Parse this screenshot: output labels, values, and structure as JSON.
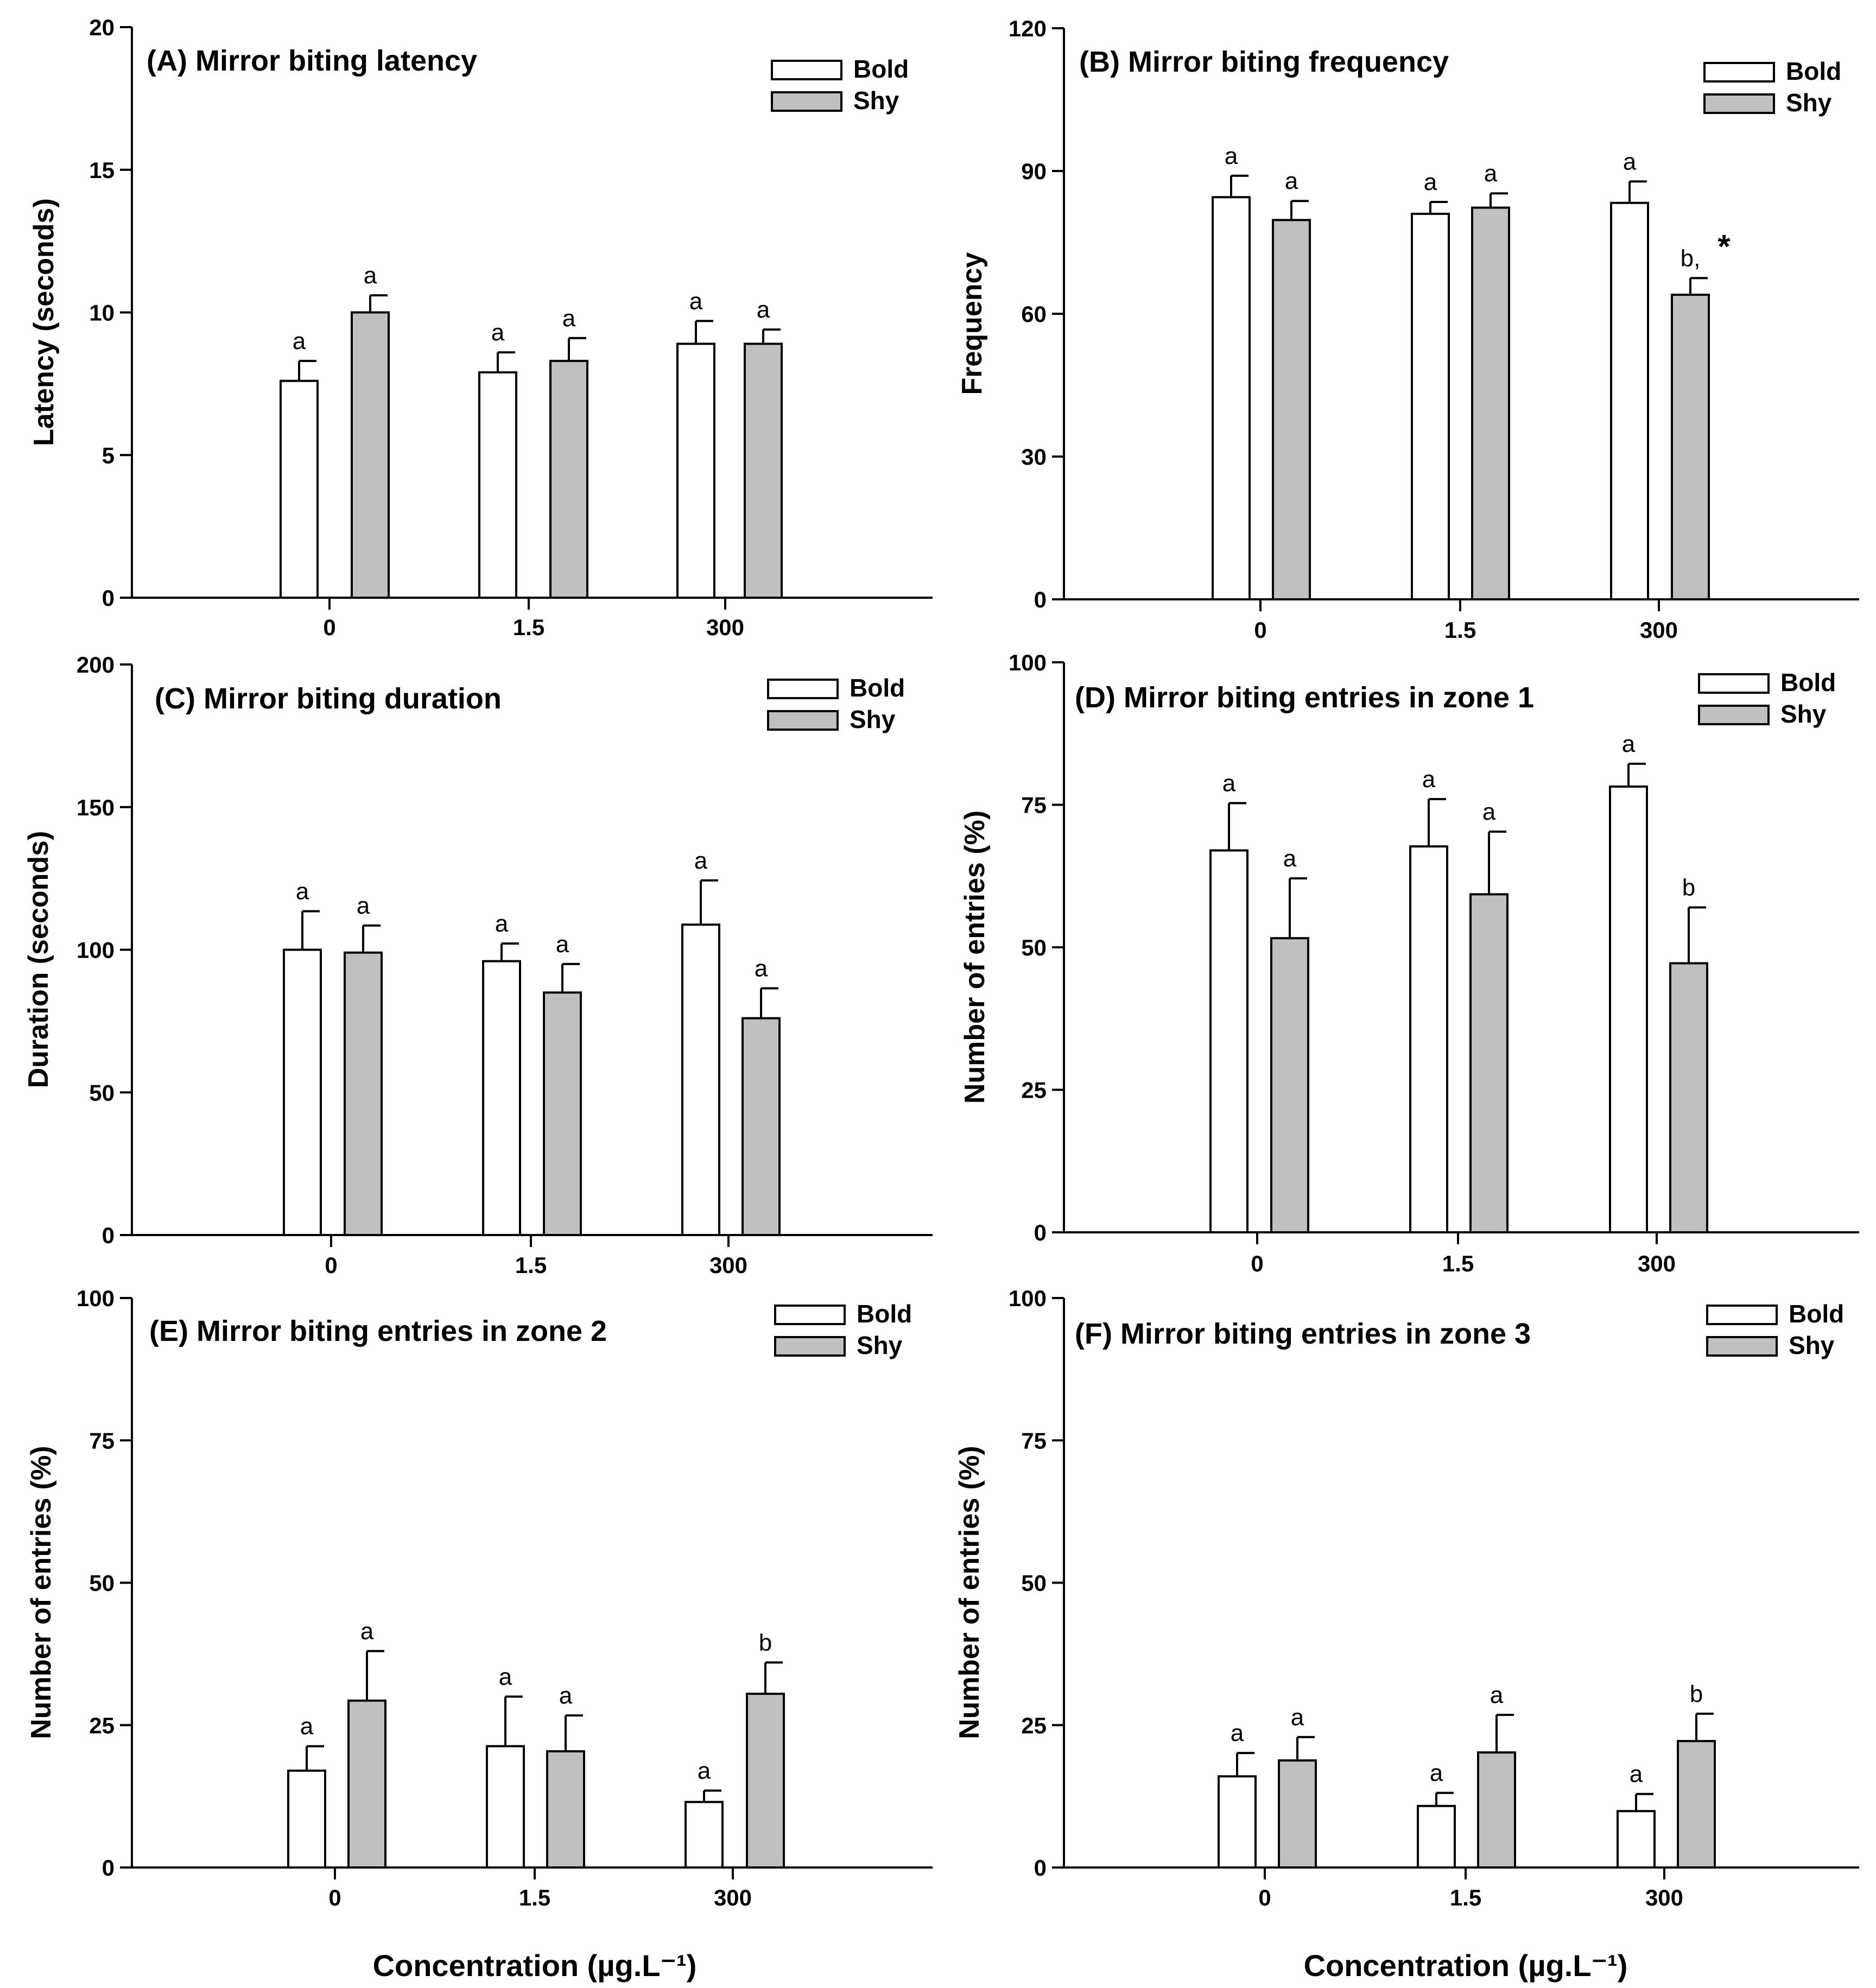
{
  "chart_data": [
    {
      "type": "bar",
      "title": "(A) Mirror biting latency",
      "xlabel": "",
      "ylabel": "Latency (seconds)",
      "categories": [
        "0",
        "1.5",
        "300"
      ],
      "ylim": [
        0,
        20
      ],
      "yticks": [
        "0",
        "5",
        "10",
        "15",
        "20"
      ],
      "series": [
        {
          "name": "Bold",
          "values": [
            7.6,
            7.9,
            8.9
          ],
          "errors": [
            0.7,
            0.7,
            0.8
          ],
          "letters": [
            "a",
            "a",
            "a"
          ]
        },
        {
          "name": "Shy",
          "values": [
            10.0,
            8.3,
            8.9
          ],
          "errors": [
            0.6,
            0.8,
            0.5
          ],
          "letters": [
            "a",
            "a",
            "a"
          ]
        }
      ]
    },
    {
      "type": "bar",
      "title": "(B) Mirror biting frequency",
      "xlabel": "",
      "ylabel": "Frequency",
      "categories": [
        "0",
        "1.5",
        "300"
      ],
      "ylim": [
        0,
        120
      ],
      "yticks": [
        "0",
        "30",
        "60",
        "90",
        "120"
      ],
      "series": [
        {
          "name": "Bold",
          "values": [
            84.5,
            81.0,
            83.3
          ],
          "errors": [
            4.5,
            2.5,
            4.5
          ],
          "letters": [
            "a",
            "a",
            "a"
          ]
        },
        {
          "name": "Shy",
          "values": [
            79.7,
            82.3,
            64.0
          ],
          "errors": [
            4.0,
            3.0,
            3.5
          ],
          "letters": [
            "a",
            "a",
            "b,"
          ]
        }
      ],
      "annotations": [
        "*"
      ]
    },
    {
      "type": "bar",
      "title": "(C) Mirror biting duration",
      "xlabel": "",
      "ylabel": "Duration (seconds)",
      "categories": [
        "0",
        "1.5",
        "300"
      ],
      "ylim": [
        0,
        200
      ],
      "yticks": [
        "0",
        "50",
        "100",
        "150",
        "200"
      ],
      "series": [
        {
          "name": "Bold",
          "values": [
            100.0,
            96.0,
            108.8
          ],
          "errors": [
            13.5,
            6.2,
            15.5
          ],
          "letters": [
            "a",
            "a",
            "a"
          ]
        },
        {
          "name": "Shy",
          "values": [
            99.0,
            85.0,
            76.0
          ],
          "errors": [
            9.5,
            10.0,
            10.5
          ],
          "letters": [
            "a",
            "a",
            "a"
          ]
        }
      ]
    },
    {
      "type": "bar",
      "title": "(D)  Mirror biting entries in zone 1",
      "xlabel": "",
      "ylabel": "Number of entries (%)",
      "categories": [
        "0",
        "1.5",
        "300"
      ],
      "ylim": [
        0,
        100
      ],
      "yticks": [
        "0",
        "25",
        "50",
        "75",
        "100"
      ],
      "series": [
        {
          "name": "Bold",
          "values": [
            67.0,
            67.7,
            78.2
          ],
          "errors": [
            8.3,
            8.3,
            4.0
          ],
          "letters": [
            "a",
            "a",
            "a"
          ]
        },
        {
          "name": "Shy",
          "values": [
            51.6,
            59.3,
            47.2
          ],
          "errors": [
            10.5,
            11.0,
            9.8
          ],
          "letters": [
            "a",
            "a",
            "b"
          ]
        }
      ]
    },
    {
      "type": "bar",
      "title": "(E)  Mirror biting entries in zone 2",
      "xlabel": "Concentration (µg.L⁻¹)",
      "ylabel": "Number of entries (%)",
      "categories": [
        "0",
        "1.5",
        "300"
      ],
      "ylim": [
        0,
        100
      ],
      "yticks": [
        "0",
        "25",
        "50",
        "75",
        "100"
      ],
      "series": [
        {
          "name": "Bold",
          "values": [
            17.0,
            21.3,
            11.5
          ],
          "errors": [
            4.3,
            8.7,
            2.0
          ],
          "letters": [
            "a",
            "a",
            "a"
          ]
        },
        {
          "name": "Shy",
          "values": [
            29.3,
            20.4,
            30.5
          ],
          "errors": [
            8.7,
            6.3,
            5.5
          ],
          "letters": [
            "a",
            "a",
            "b"
          ]
        }
      ]
    },
    {
      "type": "bar",
      "title": "(F)  Mirror biting entries in zone 3",
      "xlabel": "Concentration (µg.L⁻¹)",
      "ylabel": "Number of entries (%)",
      "categories": [
        "0",
        "1.5",
        "300"
      ],
      "ylim": [
        0,
        100
      ],
      "yticks": [
        "0",
        "25",
        "50",
        "75",
        "100"
      ],
      "series": [
        {
          "name": "Bold",
          "values": [
            16.0,
            10.8,
            9.9
          ],
          "errors": [
            4.1,
            2.3,
            3.0
          ],
          "letters": [
            "a",
            "a",
            "a"
          ]
        },
        {
          "name": "Shy",
          "values": [
            18.8,
            20.2,
            22.2
          ],
          "errors": [
            4.1,
            6.6,
            4.8
          ],
          "letters": [
            "a",
            "a",
            "b"
          ]
        }
      ]
    }
  ],
  "colors": {
    "bold": "#ffffff",
    "shy": "#c0c0c0",
    "axis": "#000000"
  }
}
